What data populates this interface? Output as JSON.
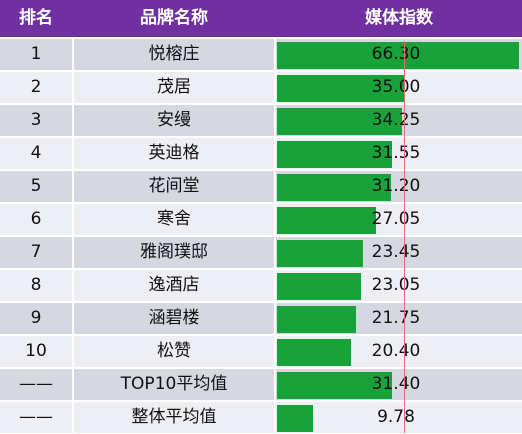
{
  "header": {
    "rank": "排名",
    "brand": "品牌名称",
    "index": "媒体指数"
  },
  "chart_data": {
    "type": "table",
    "columns": [
      "排名",
      "品牌名称",
      "媒体指数"
    ],
    "rows": [
      {
        "rank": "1",
        "brand": "悦榕庄",
        "value": 66.3,
        "label": "66.30"
      },
      {
        "rank": "2",
        "brand": "茂居",
        "value": 35.0,
        "label": "35.00"
      },
      {
        "rank": "3",
        "brand": "安缦",
        "value": 34.25,
        "label": "34.25"
      },
      {
        "rank": "4",
        "brand": "英迪格",
        "value": 31.55,
        "label": "31.55"
      },
      {
        "rank": "5",
        "brand": "花间堂",
        "value": 31.2,
        "label": "31.20"
      },
      {
        "rank": "6",
        "brand": "寒舍",
        "value": 27.05,
        "label": "27.05"
      },
      {
        "rank": "7",
        "brand": "雅阁璞邸",
        "value": 23.45,
        "label": "23.45"
      },
      {
        "rank": "8",
        "brand": "逸酒店",
        "value": 23.05,
        "label": "23.05"
      },
      {
        "rank": "9",
        "brand": "涵碧楼",
        "value": 21.75,
        "label": "21.75"
      },
      {
        "rank": "10",
        "brand": "松赞",
        "value": 20.4,
        "label": "20.40"
      },
      {
        "rank": "——",
        "brand": "TOP10平均值",
        "value": 31.4,
        "label": "31.40"
      },
      {
        "rank": "——",
        "brand": "整体平均值",
        "value": 9.78,
        "label": "9.78"
      }
    ],
    "bar_color": "#1aa23a",
    "header_color": "#7030a0",
    "reference_value": 31.4
  }
}
